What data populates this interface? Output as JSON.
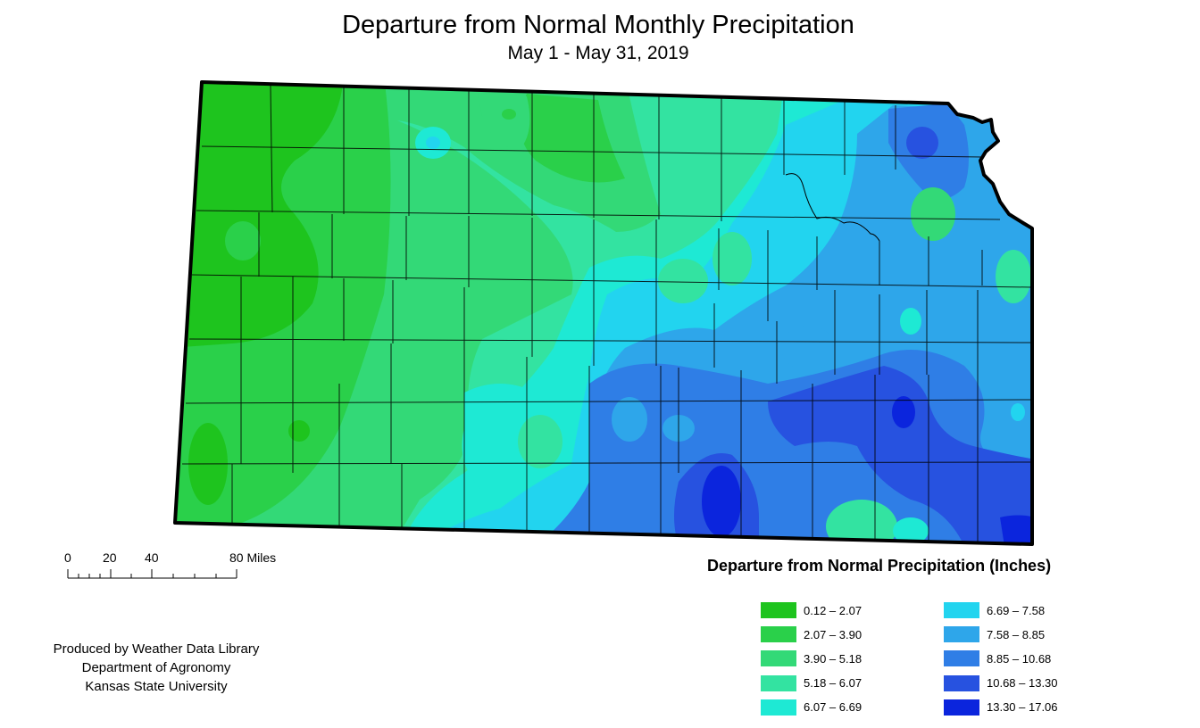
{
  "title": "Departure from Normal Monthly Precipitation",
  "subtitle": "May 1 - May 31, 2019",
  "scale_bar": {
    "ticks": [
      "0",
      "20",
      "40",
      "80 Miles"
    ]
  },
  "legend": {
    "title": "Departure from Normal Precipitation (Inches)",
    "classes": [
      {
        "label": "0.12 – 2.07",
        "color": "#1ec41e"
      },
      {
        "label": "2.07 – 3.90",
        "color": "#2ad04a"
      },
      {
        "label": "3.90 – 5.18",
        "color": "#33d977"
      },
      {
        "label": "5.18 – 6.07",
        "color": "#33e3a1"
      },
      {
        "label": "6.07 – 6.69",
        "color": "#1ee9d4"
      },
      {
        "label": "6.69 – 7.58",
        "color": "#22d4ef"
      },
      {
        "label": "7.58 – 8.85",
        "color": "#2ea6ea"
      },
      {
        "label": "8.85 – 10.68",
        "color": "#2f7ee6"
      },
      {
        "label": "10.68 – 13.30",
        "color": "#2752e0"
      },
      {
        "label": "13.30 – 17.06",
        "color": "#0b25dd"
      }
    ]
  },
  "credit": {
    "line1": "Produced by Weather Data Library",
    "line2": "Department of Agronomy",
    "line3": "Kansas State University"
  }
}
